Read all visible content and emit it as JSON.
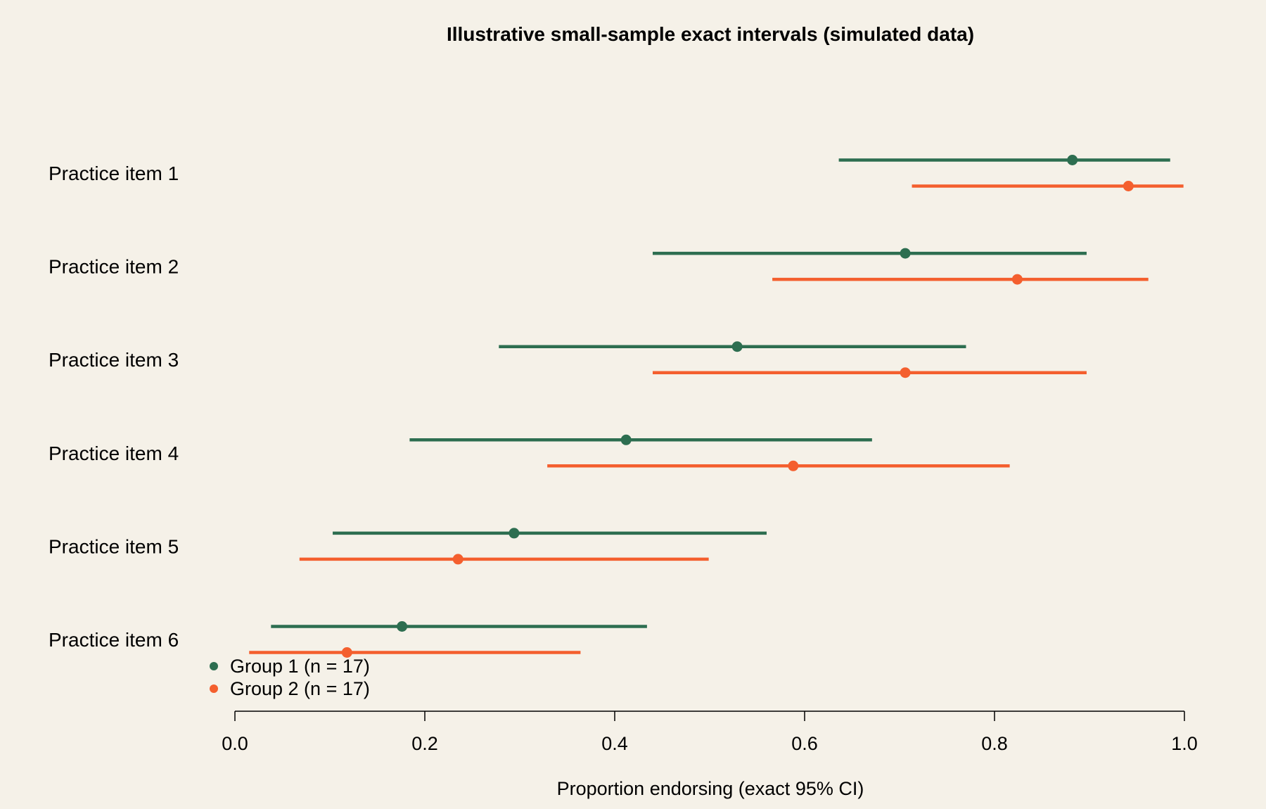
{
  "chart_data": {
    "type": "interval",
    "title": "Illustrative small-sample exact intervals (simulated data)",
    "xlabel": "Proportion endorsing (exact 95% CI)",
    "xlim": [
      0,
      1
    ],
    "x_ticks": [
      "0.0",
      "0.2",
      "0.4",
      "0.6",
      "0.8",
      "1.0"
    ],
    "x_tick_values": [
      0,
      0.2,
      0.4,
      0.6,
      0.8,
      1.0
    ],
    "categories": [
      "Practice item 1",
      "Practice item 2",
      "Practice item 3",
      "Practice item 4",
      "Practice item 5",
      "Practice item 6"
    ],
    "series": [
      {
        "name": "Group 1 (n = 17)",
        "color": "#2d6e50",
        "estimate": [
          0.882,
          0.706,
          0.529,
          0.412,
          0.294,
          0.176
        ],
        "lower": [
          0.636,
          0.44,
          0.278,
          0.184,
          0.103,
          0.038
        ],
        "upper": [
          0.985,
          0.897,
          0.77,
          0.671,
          0.56,
          0.434
        ]
      },
      {
        "name": "Group 2 (n = 17)",
        "color": "#f45f2e",
        "estimate": [
          0.941,
          0.824,
          0.706,
          0.588,
          0.235,
          0.118
        ],
        "lower": [
          0.713,
          0.566,
          0.44,
          0.329,
          0.068,
          0.015
        ],
        "upper": [
          0.999,
          0.962,
          0.897,
          0.816,
          0.499,
          0.364
        ]
      }
    ],
    "grid": false,
    "legend": "bottom-left"
  }
}
